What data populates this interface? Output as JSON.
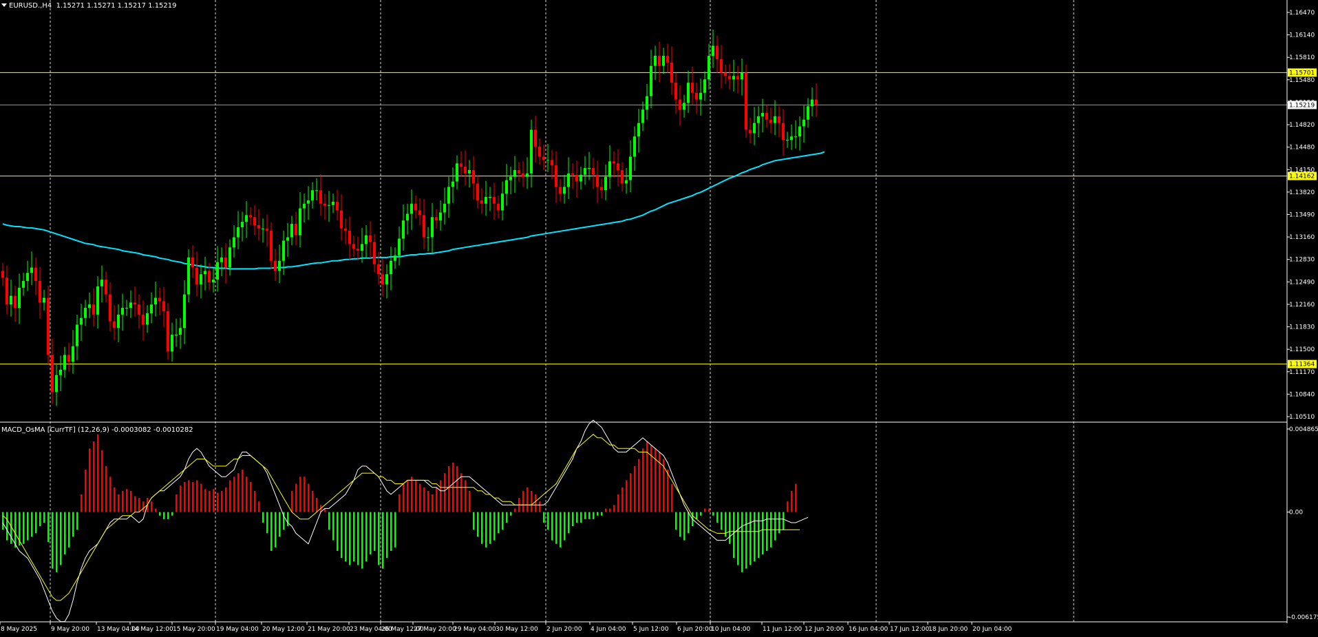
{
  "header": {
    "symbol_label": "EURUSD.,H4",
    "ohlc": "1.15271 1.15271 1.15217 1.15219",
    "indicator_label": "MACD_OsMA [CurrTF] (12,26,9) -0.0003082 -0.0010282"
  },
  "colors": {
    "background": "#000000",
    "bull": "#00ff00",
    "bear": "#ff0000",
    "ma_line": "#00e5ff",
    "level_line": "#ffff00",
    "macd_line": "#ffffff",
    "signal_line": "#ffff00",
    "grid": "#ffffff"
  },
  "chart_data": [
    {
      "type": "candlestick",
      "panel": "price",
      "ylim": [
        1.1051,
        1.1676
      ],
      "y_ticks": [
        "1.16470",
        "1.16140",
        "1.15810",
        "1.15480",
        "1.15150",
        "1.14820",
        "1.14480",
        "1.14150",
        "1.13820",
        "1.13490",
        "1.13160",
        "1.12830",
        "1.12490",
        "1.12160",
        "1.11830",
        "1.11500",
        "1.11170",
        "1.10840",
        "1.10510"
      ],
      "horizontal_levels": [
        "1.15701",
        "1.14162",
        "1.11364"
      ],
      "current_price": "1.15219",
      "x_labels": [
        "8 May 2025",
        "9 May 20:00",
        "13 May 04:00",
        "14 May 12:00",
        "15 May 20:00",
        "19 May 04:00",
        "20 May 12:00",
        "21 May 20:00",
        "23 May 04:00",
        "26 May 12:00",
        "27 May 20:00",
        "29 May 04:00",
        "30 May 12:00",
        "2 Jun 20:00",
        "4 Jun 04:00",
        "5 Jun 12:00",
        "6 Jun 20:00",
        "10 Jun 04:00",
        "11 Jun 12:00",
        "12 Jun 20:00",
        "16 Jun 04:00",
        "17 Jun 12:00",
        "18 Jun 20:00",
        "20 Jun 04:00"
      ],
      "close": [
        1.1265,
        1.1225,
        1.1238,
        1.122,
        1.125,
        1.126,
        1.1272,
        1.128,
        1.126,
        1.1228,
        1.1235,
        1.115,
        1.1095,
        1.112,
        1.1128,
        1.115,
        1.114,
        1.1163,
        1.1195,
        1.1205,
        1.122,
        1.1225,
        1.121,
        1.1252,
        1.1262,
        1.124,
        1.12,
        1.119,
        1.121,
        1.122,
        1.122,
        1.1228,
        1.1225,
        1.121,
        1.1195,
        1.1212,
        1.1225,
        1.1235,
        1.123,
        1.1215,
        1.1155,
        1.118,
        1.118,
        1.119,
        1.124,
        1.1295,
        1.128,
        1.1255,
        1.127,
        1.1275,
        1.1258,
        1.1262,
        1.1288,
        1.1295,
        1.128,
        1.131,
        1.1325,
        1.134,
        1.1348,
        1.1358,
        1.1355,
        1.1343,
        1.1338,
        1.1338,
        1.1335,
        1.129,
        1.1275,
        1.129,
        1.132,
        1.1325,
        1.1345,
        1.1328,
        1.1368,
        1.1375,
        1.138,
        1.1395,
        1.1395,
        1.1375,
        1.1372,
        1.1373,
        1.1378,
        1.1365,
        1.1338,
        1.1335,
        1.1315,
        1.1308,
        1.1305,
        1.1315,
        1.1328,
        1.1318,
        1.1285,
        1.127,
        1.1255,
        1.127,
        1.129,
        1.1298,
        1.1323,
        1.135,
        1.136,
        1.1375,
        1.1365,
        1.1358,
        1.1325,
        1.1325,
        1.1355,
        1.135,
        1.1362,
        1.1375,
        1.14,
        1.1408,
        1.1435,
        1.143,
        1.142,
        1.1425,
        1.1405,
        1.138,
        1.1375,
        1.1385,
        1.1385,
        1.1375,
        1.1365,
        1.139,
        1.141,
        1.1415,
        1.1425,
        1.142,
        1.1415,
        1.142,
        1.1485,
        1.146,
        1.1445,
        1.144,
        1.144,
        1.1432,
        1.14,
        1.139,
        1.14,
        1.142,
        1.1418,
        1.1408,
        1.1418,
        1.1428,
        1.1428,
        1.1418,
        1.14,
        1.1395,
        1.1415,
        1.1438,
        1.1435,
        1.1425,
        1.1405,
        1.141,
        1.1445,
        1.1475,
        1.1495,
        1.1515,
        1.1535,
        1.158,
        1.1595,
        1.158,
        1.1595,
        1.1585,
        1.1555,
        1.153,
        1.1515,
        1.1525,
        1.1555,
        1.154,
        1.153,
        1.154,
        1.156,
        1.1595,
        1.161,
        1.159,
        1.157,
        1.1565,
        1.156,
        1.1565,
        1.156,
        1.157,
        1.1485,
        1.148,
        1.1495,
        1.1505,
        1.151,
        1.15,
        1.1495,
        1.1505,
        1.1495,
        1.147,
        1.147,
        1.1475,
        1.1475,
        1.149,
        1.15,
        1.152,
        1.153,
        1.1522
      ],
      "ma_values": [
        1.1345,
        1.1343,
        1.1342,
        1.1341,
        1.1341,
        1.134,
        1.1339,
        1.1339,
        1.1338,
        1.1337,
        1.1336,
        1.1334,
        1.1332,
        1.133,
        1.1328,
        1.1326,
        1.1324,
        1.1322,
        1.132,
        1.1318,
        1.1316,
        1.1315,
        1.1314,
        1.1312,
        1.1311,
        1.131,
        1.1309,
        1.1308,
        1.1307,
        1.1305,
        1.1304,
        1.1303,
        1.1302,
        1.1301,
        1.1299,
        1.1298,
        1.1297,
        1.1296,
        1.1294,
        1.1293,
        1.1292,
        1.129,
        1.1289,
        1.1288,
        1.1286,
        1.1285,
        1.1284,
        1.1283,
        1.1282,
        1.1281,
        1.128,
        1.128,
        1.1279,
        1.1279,
        1.1279,
        1.1278,
        1.1278,
        1.1278,
        1.1278,
        1.1278,
        1.1278,
        1.1278,
        1.1279,
        1.1279,
        1.1279,
        1.1279,
        1.128,
        1.128,
        1.128,
        1.1281,
        1.1281,
        1.1282,
        1.1283,
        1.1284,
        1.1285,
        1.1286,
        1.1287,
        1.1287,
        1.1288,
        1.1289,
        1.129,
        1.129,
        1.1291,
        1.1292,
        1.1292,
        1.1293,
        1.1293,
        1.1294,
        1.1294,
        1.1294,
        1.1295,
        1.1295,
        1.1295,
        1.1295,
        1.1296,
        1.1296,
        1.1296,
        1.1297,
        1.1298,
        1.1299,
        1.1299,
        1.13,
        1.13,
        1.1301,
        1.1301,
        1.1302,
        1.1303,
        1.1304,
        1.1305,
        1.1307,
        1.1308,
        1.1309,
        1.131,
        1.1311,
        1.1312,
        1.1313,
        1.1314,
        1.1315,
        1.1316,
        1.1317,
        1.1318,
        1.1319,
        1.132,
        1.1321,
        1.1322,
        1.1323,
        1.1324,
        1.1325,
        1.1327,
        1.1328,
        1.1329,
        1.133,
        1.1331,
        1.1332,
        1.1333,
        1.1334,
        1.1335,
        1.1336,
        1.1337,
        1.1338,
        1.1339,
        1.134,
        1.1341,
        1.1342,
        1.1343,
        1.1344,
        1.1345,
        1.1346,
        1.1347,
        1.1348,
        1.1349,
        1.1351,
        1.1352,
        1.1354,
        1.1356,
        1.1358,
        1.1361,
        1.1364,
        1.1366,
        1.1369,
        1.1372,
        1.1375,
        1.1377,
        1.1379,
        1.1381,
        1.1383,
        1.1385,
        1.1387,
        1.139,
        1.1392,
        1.1395,
        1.1398,
        1.1401,
        1.1404,
        1.1407,
        1.141,
        1.1413,
        1.1415,
        1.1418,
        1.1421,
        1.1423,
        1.1426,
        1.1428,
        1.143,
        1.1433,
        1.1435,
        1.1437,
        1.1439,
        1.144,
        1.1441,
        1.1442,
        1.1443,
        1.1444,
        1.1445,
        1.1446,
        1.1447,
        1.1448,
        1.1449,
        1.145,
        1.1452
      ]
    },
    {
      "type": "histogram+line",
      "panel": "MACD_OsMA",
      "ylim": [
        -0.006175,
        0.004856
      ],
      "y_ticks": [
        "0.0048656",
        "0.00",
        "-0.006175"
      ],
      "osma": [
        -0.001,
        -0.0016,
        -0.0018,
        -0.002,
        -0.0019,
        -0.0018,
        -0.0016,
        -0.0014,
        -0.0012,
        -0.0008,
        -0.0006,
        -0.0017,
        -0.0032,
        -0.0034,
        -0.003,
        -0.0024,
        -0.002,
        -0.0014,
        -0.001,
        0.001,
        0.0024,
        0.0036,
        0.004,
        0.0044,
        0.0035,
        0.0026,
        0.002,
        0.0014,
        0.001,
        0.0012,
        0.0013,
        0.0012,
        0.0009,
        0.0008,
        0.0006,
        0.0008,
        0.0006,
        0.0002,
        -0.0002,
        -0.0004,
        -0.0004,
        -0.0002,
        0.001,
        0.0015,
        0.0017,
        0.0018,
        0.0017,
        0.0018,
        0.0016,
        0.0013,
        0.0012,
        0.0013,
        0.0011,
        0.0012,
        0.0014,
        0.0018,
        0.002,
        0.0022,
        0.0024,
        0.002,
        0.0017,
        0.0012,
        0.0006,
        -0.0006,
        -0.0012,
        -0.0022,
        -0.002,
        -0.0014,
        -0.001,
        -0.0008,
        0.0012,
        0.0016,
        0.002,
        0.002,
        0.0016,
        0.0012,
        0.0008,
        0.0004,
        0.0002,
        -0.001,
        -0.0016,
        -0.0022,
        -0.0026,
        -0.0028,
        -0.003,
        -0.0028,
        -0.003,
        -0.0032,
        -0.0028,
        -0.0024,
        -0.0022,
        -0.003,
        -0.0032,
        -0.0026,
        -0.0022,
        -0.002,
        0.001,
        0.0016,
        0.0018,
        0.002,
        0.0018,
        0.0016,
        0.0014,
        0.0012,
        0.001,
        0.0014,
        0.0018,
        0.0022,
        0.0026,
        0.0028,
        0.0026,
        0.0022,
        0.0018,
        0.0012,
        -0.001,
        -0.0014,
        -0.0018,
        -0.002,
        -0.0018,
        -0.0016,
        -0.0012,
        -0.001,
        -0.0006,
        -0.0002,
        0.0002,
        0.0008,
        0.0012,
        0.0014,
        0.0012,
        0.001,
        0.0006,
        -0.0006,
        -0.001,
        -0.0016,
        -0.0018,
        -0.002,
        -0.0016,
        -0.0012,
        -0.0008,
        -0.0006,
        -0.0006,
        -0.0004,
        -0.0004,
        -0.0004,
        -0.0002,
        -0.0002,
        0.0002,
        0.0002,
        0.0004,
        0.001,
        0.0014,
        0.0018,
        0.0022,
        0.0026,
        0.003,
        0.0036,
        0.004,
        0.0038,
        0.0036,
        0.0034,
        0.003,
        0.0024,
        0.0016,
        -0.001,
        -0.0014,
        -0.0016,
        -0.0012,
        -0.0008,
        -0.0004,
        -0.0002,
        0.0002,
        0.0002,
        -0.0002,
        -0.0006,
        -0.001,
        -0.0014,
        -0.0018,
        -0.0026,
        -0.003,
        -0.0034,
        -0.0032,
        -0.003,
        -0.0028,
        -0.0026,
        -0.0024,
        -0.0022,
        -0.002,
        -0.0016,
        -0.0012,
        -0.001,
        0.0006,
        0.0012,
        0.0016
      ],
      "macd": [
        -0.0006,
        -0.001,
        -0.0014,
        -0.0018,
        -0.0022,
        -0.0024,
        -0.0026,
        -0.003,
        -0.0034,
        -0.0038,
        -0.0044,
        -0.005,
        -0.0056,
        -0.006,
        -0.0062,
        -0.0062,
        -0.0058,
        -0.005,
        -0.004,
        -0.0032,
        -0.0026,
        -0.0022,
        -0.002,
        -0.0018,
        -0.0014,
        -0.001,
        -0.0006,
        -0.0004,
        -0.0004,
        -0.0004,
        -0.0004,
        -0.0002,
        -0.0004,
        -0.0006,
        -0.0004,
        0.0004,
        0.0008,
        0.001,
        0.0012,
        0.0012,
        0.0014,
        0.0016,
        0.0018,
        0.002,
        0.0024,
        0.003,
        0.0034,
        0.0036,
        0.0034,
        0.003,
        0.0026,
        0.0024,
        0.0022,
        0.002,
        0.002,
        0.0022,
        0.0024,
        0.003,
        0.0034,
        0.0034,
        0.0032,
        0.003,
        0.0028,
        0.0026,
        0.0022,
        0.0016,
        0.001,
        0.0004,
        -0.0002,
        -0.0006,
        -0.0008,
        -0.0012,
        -0.0014,
        -0.0016,
        -0.0018,
        -0.0012,
        -0.0006,
        0.0,
        0.0002,
        0.0002,
        0.0004,
        0.0006,
        0.0008,
        0.001,
        0.0014,
        0.0018,
        0.0024,
        0.0026,
        0.0026,
        0.0024,
        0.0022,
        0.002,
        0.0016,
        0.0012,
        0.001,
        0.0012,
        0.0014,
        0.0016,
        0.0018,
        0.0018,
        0.0018,
        0.0018,
        0.0018,
        0.0016,
        0.0014,
        0.0014,
        0.0012,
        0.0012,
        0.0014,
        0.0016,
        0.0018,
        0.002,
        0.002,
        0.002,
        0.0018,
        0.0016,
        0.0014,
        0.0012,
        0.001,
        0.0008,
        0.0006,
        0.0004,
        0.0004,
        0.0004,
        0.0004,
        0.0004,
        0.0004,
        0.0004,
        0.0004,
        0.0004,
        0.0004,
        0.0004,
        0.0006,
        0.001,
        0.0014,
        0.0018,
        0.0022,
        0.0026,
        0.003,
        0.0036,
        0.004,
        0.0046,
        0.005,
        0.0052,
        0.005,
        0.0048,
        0.0044,
        0.004,
        0.0036,
        0.0034,
        0.0034,
        0.0034,
        0.0036,
        0.0038,
        0.004,
        0.0042,
        0.004,
        0.0038,
        0.0036,
        0.0034,
        0.0032,
        0.0028,
        0.0022,
        0.0016,
        0.001,
        0.0004,
        0.0,
        -0.0004,
        -0.0006,
        -0.0008,
        -0.001,
        -0.0012,
        -0.0014,
        -0.0016,
        -0.0016,
        -0.0016,
        -0.0014,
        -0.0012,
        -0.001,
        -0.0008,
        -0.0007,
        -0.0006,
        -0.0005,
        -0.0005,
        -0.0005,
        -0.0004,
        -0.0004,
        -0.0004,
        -0.0004,
        -0.0004,
        -0.0005,
        -0.0006,
        -0.0006,
        -0.0005,
        -0.0004,
        -0.0003
      ],
      "signal": [
        -0.0002,
        -0.0004,
        -0.0008,
        -0.0012,
        -0.0016,
        -0.002,
        -0.0024,
        -0.0028,
        -0.0032,
        -0.0036,
        -0.004,
        -0.0044,
        -0.0048,
        -0.005,
        -0.005,
        -0.0048,
        -0.0046,
        -0.0042,
        -0.0038,
        -0.0034,
        -0.003,
        -0.0026,
        -0.0022,
        -0.0018,
        -0.0014,
        -0.001,
        -0.0008,
        -0.0006,
        -0.0004,
        -0.0002,
        -0.0002,
        -0.0002,
        0.0,
        0.0,
        0.0002,
        0.0004,
        0.0008,
        0.001,
        0.0012,
        0.0014,
        0.0016,
        0.0018,
        0.002,
        0.0022,
        0.0024,
        0.0026,
        0.0028,
        0.003,
        0.003,
        0.003,
        0.0028,
        0.0026,
        0.0026,
        0.0026,
        0.0026,
        0.0028,
        0.003,
        0.003,
        0.0032,
        0.0032,
        0.0032,
        0.003,
        0.0028,
        0.0026,
        0.0024,
        0.002,
        0.0016,
        0.0012,
        0.0008,
        0.0004,
        0.0,
        -0.0002,
        -0.0004,
        -0.0004,
        -0.0004,
        -0.0002,
        0.0,
        0.0002,
        0.0004,
        0.0006,
        0.0008,
        0.001,
        0.0012,
        0.0014,
        0.0016,
        0.0018,
        0.002,
        0.0022,
        0.0022,
        0.0022,
        0.0022,
        0.002,
        0.002,
        0.0018,
        0.0018,
        0.0016,
        0.0016,
        0.0016,
        0.0018,
        0.0018,
        0.0018,
        0.0018,
        0.0018,
        0.0018,
        0.0016,
        0.0016,
        0.0014,
        0.0014,
        0.0014,
        0.0014,
        0.0014,
        0.0014,
        0.0014,
        0.0014,
        0.0014,
        0.0012,
        0.0012,
        0.001,
        0.001,
        0.0008,
        0.0008,
        0.0006,
        0.0006,
        0.0006,
        0.0004,
        0.0004,
        0.0004,
        0.0004,
        0.0004,
        0.0006,
        0.0008,
        0.001,
        0.0012,
        0.0014,
        0.0016,
        0.002,
        0.0024,
        0.0028,
        0.0032,
        0.0036,
        0.0038,
        0.004,
        0.0042,
        0.0044,
        0.0042,
        0.0042,
        0.004,
        0.0038,
        0.0038,
        0.0036,
        0.0036,
        0.0036,
        0.0036,
        0.0036,
        0.0034,
        0.0034,
        0.0034,
        0.0032,
        0.003,
        0.0028,
        0.0026,
        0.0022,
        0.0018,
        0.0014,
        0.001,
        0.0006,
        0.0002,
        -0.0002,
        -0.0004,
        -0.0006,
        -0.0008,
        -0.001,
        -0.0011,
        -0.0012,
        -0.0012,
        -0.0012,
        -0.0011,
        -0.0011,
        -0.0011,
        -0.0011,
        -0.0011,
        -0.0011,
        -0.0011,
        -0.0011,
        -0.001,
        -0.001,
        -0.001,
        -0.001,
        -0.001,
        -0.001,
        -0.001,
        -0.001,
        -0.001,
        -0.001
      ]
    }
  ]
}
